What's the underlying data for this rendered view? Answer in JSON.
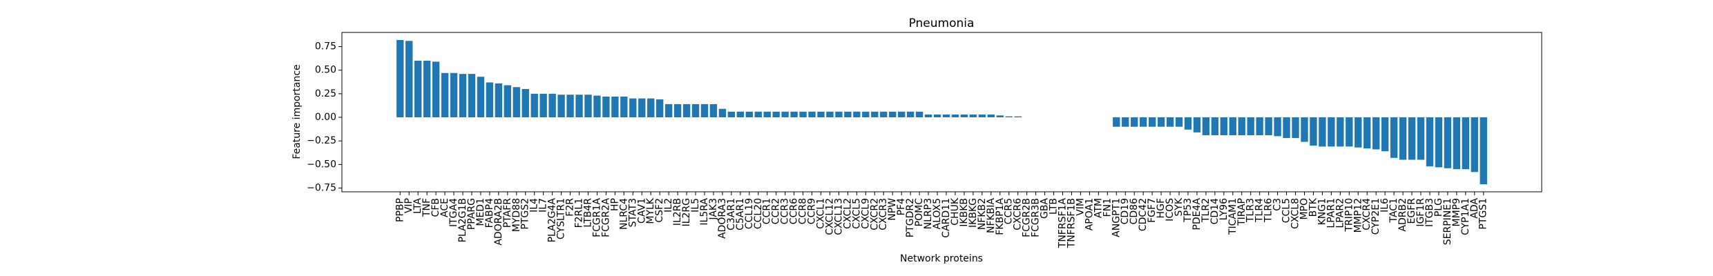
{
  "chart_data": {
    "type": "bar",
    "title": "Pneumonia",
    "x_label": "Network proteins",
    "y_label": "Feature importance",
    "categories": [
      "PPBP",
      "VIP",
      "LTA",
      "TNF",
      "CFB",
      "ACE",
      "ITGA4",
      "PLA2G1B",
      "PPARG",
      "MED1",
      "FABP4",
      "ADORA2B",
      "PTAFR",
      "MYD88",
      "PTGS2",
      "IL4",
      "IL7",
      "PLA2G4A",
      "CYSLTR1",
      "F2R",
      "F2RL1",
      "LTB4R",
      "FCGR1A",
      "FCGR2A",
      "HP",
      "NLRC4",
      "STAT3",
      "CAV1",
      "MYLK",
      "CSF2",
      "IL2",
      "IL2RB",
      "IL2RG",
      "IL5",
      "IL5RA",
      "JAK3",
      "ADORA3",
      "C3AR1",
      "C5AR1",
      "CCL19",
      "CCL20",
      "CCR1",
      "CCR2",
      "CCR3",
      "CCR6",
      "CCR8",
      "CCR9",
      "CXCL1",
      "CXCL12",
      "CXCL13",
      "CXCL2",
      "CXCL5",
      "CXCL9",
      "CXCR2",
      "CXCR3",
      "NPW",
      "PF4",
      "PTGDR2",
      "POMC",
      "NLRP3",
      "ALOX5",
      "CARD11",
      "CHUK",
      "IKBKB",
      "IKBKG",
      "NFKB2",
      "NFKBIA",
      "FKBP1A",
      "CCR5",
      "CXCR6",
      "FCGR2B",
      "FCGR3B",
      "GBA",
      "LTB",
      "TNFRSF1A",
      "TNFRSF1B",
      "VIM",
      "APOA1",
      "ATM",
      "FN1",
      "ANGPT1",
      "CD19",
      "CD86",
      "CDC42",
      "FGF7",
      "HGF",
      "ICOS",
      "SYK",
      "TP53",
      "PDE4A",
      "TLR2",
      "CD14",
      "LY96",
      "TICAM1",
      "TIRAP",
      "TLR3",
      "TLR4",
      "TLR6",
      "C3",
      "CCL5",
      "CXCL8",
      "MPO",
      "BTK",
      "KNG1",
      "LPAR1",
      "LPAR2",
      "TRIP10",
      "MMP12",
      "CXCR4",
      "CYP2E1",
      "IL6",
      "TAC1",
      "ADRB2",
      "EGFR",
      "IGF1R",
      "ITGB3",
      "PLG",
      "SERPINE1",
      "MMP9",
      "CYP1A1",
      "ADA",
      "PTGS1"
    ],
    "values": [
      0.82,
      0.81,
      0.6,
      0.6,
      0.59,
      0.47,
      0.47,
      0.46,
      0.46,
      0.43,
      0.37,
      0.36,
      0.34,
      0.32,
      0.3,
      0.25,
      0.25,
      0.25,
      0.24,
      0.24,
      0.24,
      0.24,
      0.23,
      0.22,
      0.22,
      0.22,
      0.2,
      0.2,
      0.2,
      0.19,
      0.14,
      0.14,
      0.14,
      0.14,
      0.14,
      0.14,
      0.09,
      0.06,
      0.06,
      0.06,
      0.06,
      0.06,
      0.06,
      0.06,
      0.06,
      0.06,
      0.06,
      0.06,
      0.06,
      0.06,
      0.06,
      0.06,
      0.06,
      0.06,
      0.06,
      0.06,
      0.06,
      0.06,
      0.06,
      0.03,
      0.03,
      0.03,
      0.03,
      0.03,
      0.03,
      0.03,
      0.03,
      0.02,
      0.01,
      0.01,
      0,
      0,
      0,
      0,
      0,
      0,
      0,
      0,
      0,
      0,
      -0.1,
      -0.1,
      -0.1,
      -0.1,
      -0.1,
      -0.1,
      -0.1,
      -0.1,
      -0.13,
      -0.16,
      -0.19,
      -0.19,
      -0.19,
      -0.19,
      -0.19,
      -0.19,
      -0.19,
      -0.19,
      -0.2,
      -0.22,
      -0.22,
      -0.26,
      -0.3,
      -0.31,
      -0.31,
      -0.31,
      -0.31,
      -0.32,
      -0.33,
      -0.34,
      -0.36,
      -0.43,
      -0.45,
      -0.45,
      -0.45,
      -0.52,
      -0.53,
      -0.54,
      -0.55,
      -0.55,
      -0.58,
      -0.71
    ],
    "color": "#1f77b4",
    "ylim": [
      -0.79,
      0.9
    ],
    "yticks": [
      {
        "value": -0.75,
        "label": "−0.75"
      },
      {
        "value": -0.5,
        "label": "−0.50"
      },
      {
        "value": -0.25,
        "label": "−0.25"
      },
      {
        "value": 0,
        "label": "0.00"
      },
      0.25,
      {
        "value": 0.5,
        "label": "0.50"
      },
      0.75
    ]
  }
}
